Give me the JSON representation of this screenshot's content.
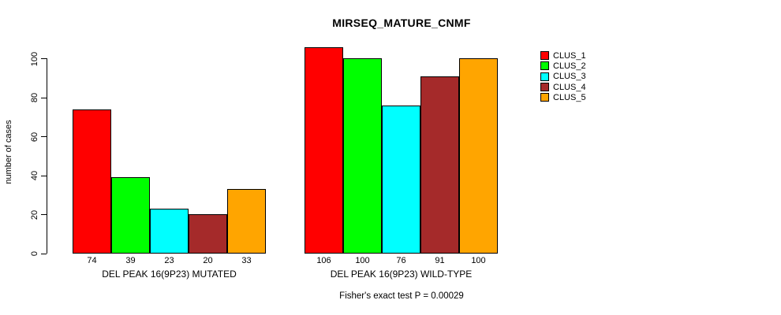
{
  "title": "MIRSEQ_MATURE_CNMF",
  "annotation": "Fisher's exact test P = 0.00029",
  "chart_data": {
    "type": "bar",
    "title": "MIRSEQ_MATURE_CNMF",
    "ylabel": "number of cases",
    "xlabel": "",
    "ylim": [
      0,
      100
    ],
    "yticks": [
      0,
      20,
      40,
      60,
      80,
      100
    ],
    "grid": false,
    "bar_value_labels": true,
    "legend_position": "right",
    "categories": [
      "DEL PEAK 16(9P23) MUTATED",
      "DEL PEAK 16(9P23) WILD-TYPE"
    ],
    "series": [
      {
        "name": "CLUS_1",
        "color": "#FF0000",
        "values": [
          74,
          106
        ]
      },
      {
        "name": "CLUS_2",
        "color": "#00FF00",
        "values": [
          39,
          100
        ]
      },
      {
        "name": "CLUS_3",
        "color": "#00FFFF",
        "values": [
          23,
          76
        ]
      },
      {
        "name": "CLUS_4",
        "color": "#A52A2A",
        "values": [
          20,
          91
        ]
      },
      {
        "name": "CLUS_5",
        "color": "#FFA500",
        "values": [
          33,
          100
        ]
      }
    ],
    "annotation": "Fisher's exact test P = 0.00029"
  }
}
